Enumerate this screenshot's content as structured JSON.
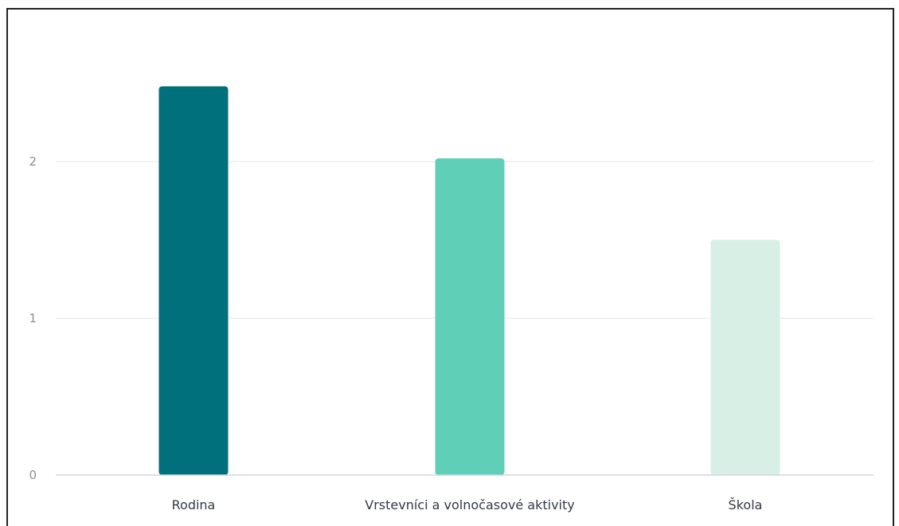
{
  "chart_data": {
    "type": "bar",
    "title": "",
    "xlabel": "",
    "ylabel": "",
    "categories": [
      "Rodina",
      "Vrstevníci a volnočasové aktivity",
      "Škola"
    ],
    "values": [
      2.48,
      2.02,
      1.5
    ],
    "ylim": [
      0,
      2.6
    ],
    "yticks": [
      "0",
      "1",
      "2"
    ],
    "grid": true,
    "legend": "none",
    "colors": [
      "#00707c",
      "#5fcfb8",
      "#d8efe6"
    ]
  }
}
